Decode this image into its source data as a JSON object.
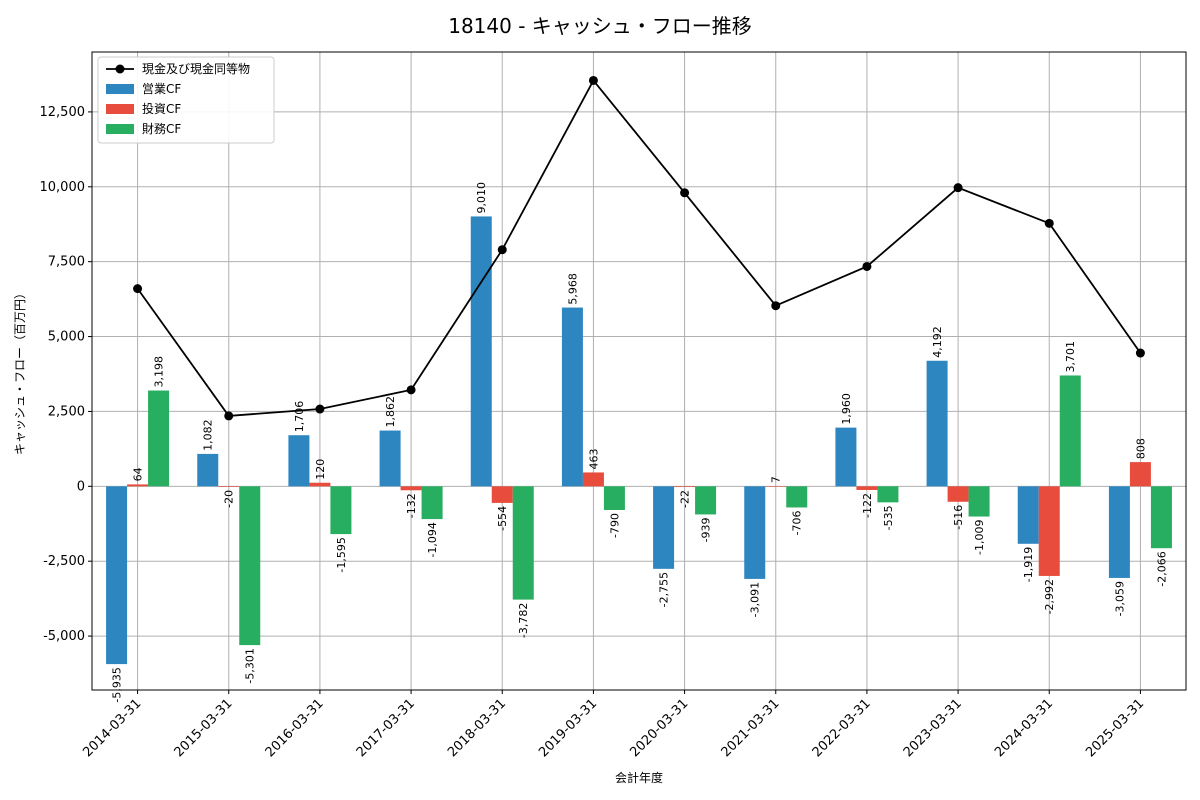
{
  "chart_data": {
    "type": "bar",
    "title": "18140 - キャッシュ・フロー推移",
    "xlabel": "会計年度",
    "ylabel": "キャッシュ・フロー（百万円）",
    "ylim": [
      -6800,
      14500
    ],
    "yticks": [
      -5000,
      -2500,
      0,
      2500,
      5000,
      7500,
      10000,
      12500
    ],
    "ytick_labels": [
      "-5,000",
      "-2,500",
      "0",
      "2,500",
      "5,000",
      "7,500",
      "10,000",
      "12,500"
    ],
    "grid": true,
    "legend_position": "top-left",
    "categories": [
      "2014-03-31",
      "2015-03-31",
      "2016-03-31",
      "2017-03-31",
      "2018-03-31",
      "2019-03-31",
      "2020-03-31",
      "2021-03-31",
      "2022-03-31",
      "2023-03-31",
      "2024-03-31",
      "2025-03-31"
    ],
    "series": [
      {
        "name": "営業CF",
        "kind": "bar",
        "color": "#2e86c1",
        "values": [
          -5935,
          1082,
          1706,
          1862,
          9010,
          5968,
          -2755,
          -3091,
          1960,
          4192,
          -1919,
          -3059
        ],
        "labels": [
          "-5,935",
          "1,082",
          "1,706",
          "1,862",
          "9,010",
          "5,968",
          "-2,755",
          "-3,091",
          "1,960",
          "4,192",
          "-1,919",
          "-3,059"
        ]
      },
      {
        "name": "投資CF",
        "kind": "bar",
        "color": "#e74c3c",
        "values": [
          64,
          -20,
          120,
          -132,
          -554,
          463,
          -22,
          7,
          -122,
          -516,
          -2992,
          808
        ],
        "labels": [
          "64",
          "-20",
          "120",
          "-132",
          "-554",
          "463",
          "-22",
          "7",
          "-122",
          "-516",
          "-2,992",
          "808"
        ]
      },
      {
        "name": "財務CF",
        "kind": "bar",
        "color": "#27ae60",
        "values": [
          3198,
          -5301,
          -1595,
          -1094,
          -3782,
          -790,
          -939,
          -706,
          -535,
          -1009,
          3701,
          -2066
        ],
        "labels": [
          "3,198",
          "-5,301",
          "-1,595",
          "-1,094",
          "-3,782",
          "-790",
          "-939",
          "-706",
          "-535",
          "-1,009",
          "3,701",
          "-2,066"
        ]
      },
      {
        "name": "現金及び現金同等物",
        "kind": "line",
        "color": "#000000",
        "values": [
          6600,
          2350,
          2580,
          3220,
          7900,
          13550,
          9800,
          6030,
          7340,
          9970,
          8780,
          4450
        ]
      }
    ]
  }
}
